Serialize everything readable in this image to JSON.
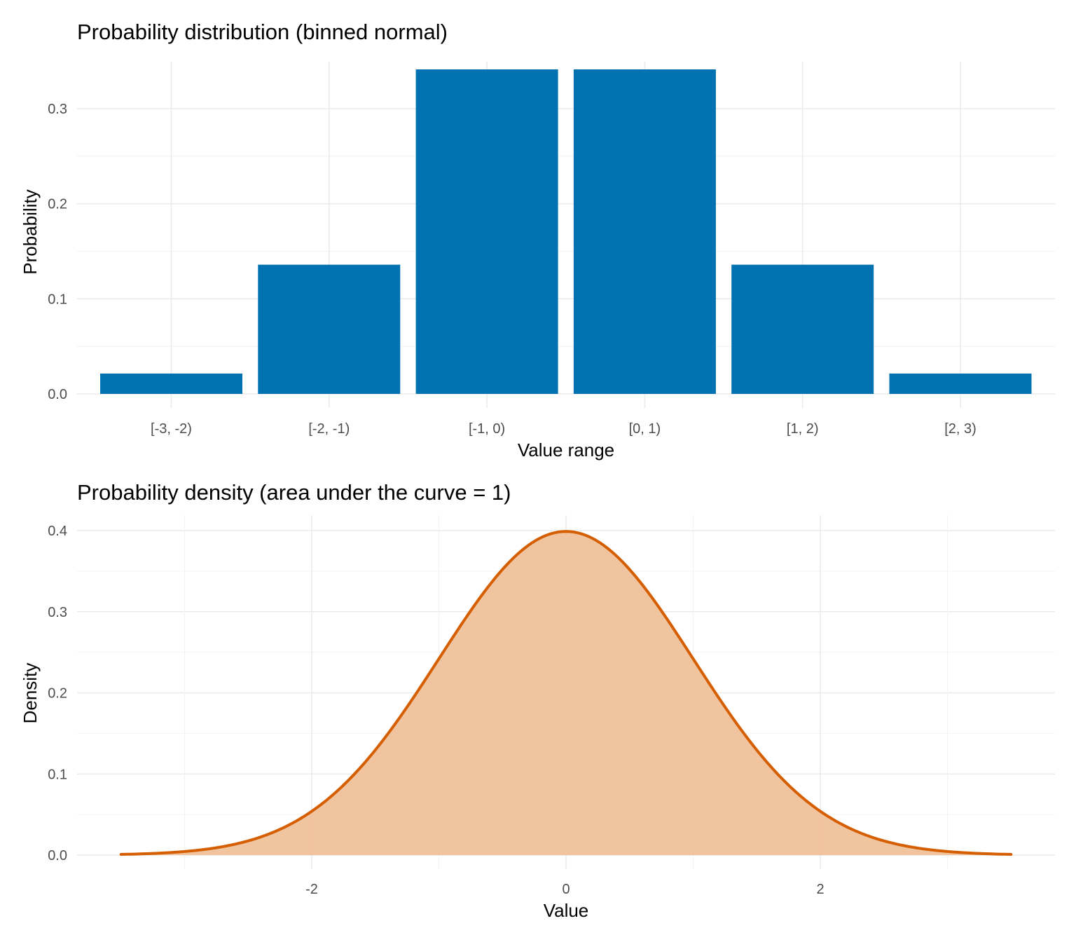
{
  "chart_data": [
    {
      "type": "bar",
      "title": "Probability distribution (binned normal)",
      "xlabel": "Value range",
      "ylabel": "Probability",
      "categories": [
        "[-3, -2)",
        "[-2, -1)",
        "[-1, 0)",
        "[0, 1)",
        "[1, 2)",
        "[2, 3)"
      ],
      "values": [
        0.0214,
        0.1359,
        0.3413,
        0.3413,
        0.1359,
        0.0214
      ],
      "ylim": [
        0,
        0.35
      ],
      "yticks": [
        0.0,
        0.1,
        0.2,
        0.3
      ],
      "ytick_labels": [
        "0.0",
        "0.1",
        "0.2",
        "0.3"
      ],
      "grid": true,
      "color": "#0072B2"
    },
    {
      "type": "area",
      "title": "Probability density (area under the curve = 1)",
      "xlabel": "Value",
      "ylabel": "Density",
      "distribution": "standard normal",
      "x": [
        -3.5,
        -3.0,
        -2.5,
        -2.0,
        -1.5,
        -1.0,
        -0.5,
        0.0,
        0.5,
        1.0,
        1.5,
        2.0,
        2.5,
        3.0,
        3.5
      ],
      "y": [
        0.0009,
        0.0044,
        0.0175,
        0.054,
        0.1295,
        0.242,
        0.3521,
        0.3989,
        0.3521,
        0.242,
        0.1295,
        0.054,
        0.0175,
        0.0044,
        0.0009
      ],
      "xlim": [
        -3.5,
        3.5
      ],
      "ylim": [
        0,
        0.4
      ],
      "xticks": [
        -2,
        0,
        2
      ],
      "xtick_labels": [
        "-2",
        "0",
        "2"
      ],
      "yticks": [
        0.0,
        0.1,
        0.2,
        0.3,
        0.4
      ],
      "ytick_labels": [
        "0.0",
        "0.1",
        "0.2",
        "0.3",
        "0.4"
      ],
      "grid": true,
      "line_color": "#D55E00",
      "fill_color": "#F0BE96"
    }
  ]
}
